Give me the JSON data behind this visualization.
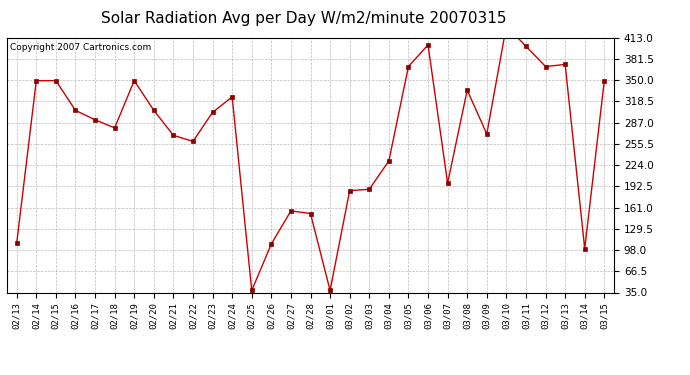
{
  "title": "Solar Radiation Avg per Day W/m2/minute 20070315",
  "copyright": "Copyright 2007 Cartronics.com",
  "labels": [
    "02/13",
    "02/14",
    "02/15",
    "02/16",
    "02/17",
    "02/18",
    "02/19",
    "02/20",
    "02/21",
    "02/22",
    "02/23",
    "02/24",
    "02/25",
    "02/26",
    "02/27",
    "02/28",
    "03/01",
    "03/02",
    "03/03",
    "03/04",
    "03/05",
    "03/06",
    "03/07",
    "03/08",
    "03/09",
    "03/10",
    "03/11",
    "03/12",
    "03/13",
    "03/14",
    "03/15"
  ],
  "values": [
    108,
    349,
    349,
    305,
    291,
    279,
    349,
    305,
    268,
    259,
    302,
    325,
    38,
    107,
    156,
    152,
    38,
    186,
    188,
    230,
    370,
    402,
    197,
    335,
    270,
    430,
    400,
    370,
    373,
    100,
    349
  ],
  "line_color": "#cc0000",
  "marker_color": "#880000",
  "bg_color": "#ffffff",
  "plot_bg_color": "#ffffff",
  "grid_color": "#bbbbbb",
  "ylim": [
    35.0,
    413.0
  ],
  "yticks": [
    35.0,
    66.5,
    98.0,
    129.5,
    161.0,
    192.5,
    224.0,
    255.5,
    287.0,
    318.5,
    350.0,
    381.5,
    413.0
  ],
  "title_fontsize": 11,
  "copyright_fontsize": 6.5,
  "tick_fontsize": 6.5,
  "ytick_fontsize": 7.5
}
